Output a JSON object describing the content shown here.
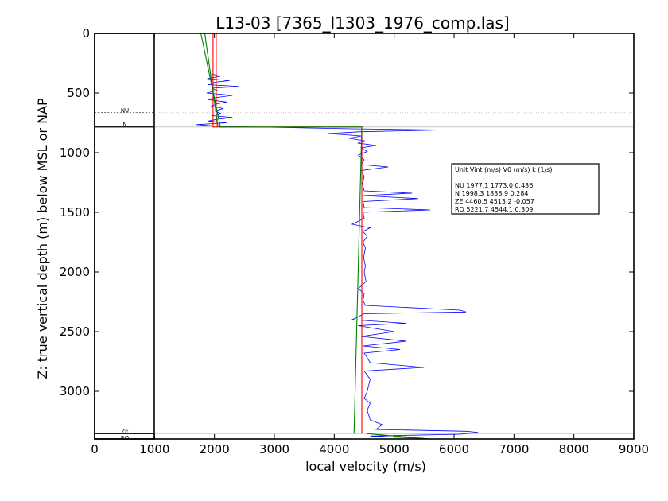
{
  "chart_data": {
    "type": "line",
    "title": "L13-03 [7365_l1303_1976_comp.las]",
    "xlabel": "local velocity (m/s)",
    "ylabel": "Z: true vertical depth (m) below MSL or NAP",
    "xlim": [
      0,
      9000
    ],
    "ylim": [
      3400,
      0
    ],
    "x_ticks": [
      "0",
      "1000",
      "2000",
      "3000",
      "4000",
      "5000",
      "6000",
      "7000",
      "8000",
      "9000"
    ],
    "y_ticks": [
      "0",
      "500",
      "1000",
      "1500",
      "2000",
      "2500",
      "3000"
    ],
    "grid": false,
    "zones": [
      {
        "name": "NU",
        "top": 0,
        "base": 785,
        "color": "#f7cb00"
      },
      {
        "name": "N",
        "top": 785,
        "base": 785,
        "color": "#f7cb00"
      },
      {
        "name": "ZE",
        "top": 785,
        "base": 3355,
        "color": "#f2b59f"
      },
      {
        "name": "RO",
        "top": 3355,
        "base": 3400,
        "color": "#b17b73"
      }
    ],
    "zone_labels": [
      {
        "label": "NU",
        "depth": 640
      },
      {
        "label": "N",
        "depth": 755
      },
      {
        "label": "ZE",
        "depth": 3330
      },
      {
        "label": "RO",
        "depth": 3385
      }
    ],
    "boundaries": [
      {
        "depth": 665,
        "style": "dotted"
      },
      {
        "depth": 785,
        "style": "solid"
      },
      {
        "depth": 3355,
        "style": "solid"
      }
    ],
    "series": [
      {
        "color": "#0000ff",
        "points": [
          [
            1950,
            340
          ],
          [
            2100,
            360
          ],
          [
            1880,
            380
          ],
          [
            2250,
            395
          ],
          [
            2000,
            410
          ],
          [
            1900,
            430
          ],
          [
            2400,
            445
          ],
          [
            1950,
            460
          ],
          [
            2050,
            480
          ],
          [
            1870,
            500
          ],
          [
            2300,
            520
          ],
          [
            2000,
            540
          ],
          [
            1900,
            555
          ],
          [
            2200,
            575
          ],
          [
            2050,
            590
          ],
          [
            1950,
            610
          ],
          [
            2150,
            630
          ],
          [
            2000,
            650
          ],
          [
            2100,
            670
          ],
          [
            1950,
            690
          ],
          [
            2300,
            705
          ],
          [
            2050,
            720
          ],
          [
            1900,
            735
          ],
          [
            2200,
            750
          ],
          [
            1700,
            765
          ],
          [
            2100,
            780
          ],
          [
            4300,
            800
          ],
          [
            5800,
            810
          ],
          [
            4400,
            825
          ],
          [
            3900,
            840
          ],
          [
            4450,
            860
          ],
          [
            4250,
            880
          ],
          [
            4500,
            900
          ],
          [
            4400,
            920
          ],
          [
            4700,
            940
          ],
          [
            4450,
            960
          ],
          [
            4550,
            990
          ],
          [
            4400,
            1020
          ],
          [
            4500,
            1060
          ],
          [
            4450,
            1100
          ],
          [
            4900,
            1120
          ],
          [
            4450,
            1150
          ],
          [
            4500,
            1200
          ],
          [
            4470,
            1260
          ],
          [
            4500,
            1320
          ],
          [
            5300,
            1340
          ],
          [
            4480,
            1360
          ],
          [
            5400,
            1385
          ],
          [
            4480,
            1410
          ],
          [
            4500,
            1460
          ],
          [
            5600,
            1480
          ],
          [
            4480,
            1500
          ],
          [
            4500,
            1550
          ],
          [
            4300,
            1600
          ],
          [
            4600,
            1630
          ],
          [
            4480,
            1660
          ],
          [
            4550,
            1700
          ],
          [
            4480,
            1750
          ],
          [
            4520,
            1800
          ],
          [
            4490,
            1880
          ],
          [
            4520,
            1950
          ],
          [
            4500,
            2000
          ],
          [
            4530,
            2080
          ],
          [
            4400,
            2140
          ],
          [
            4500,
            2180
          ],
          [
            4480,
            2240
          ],
          [
            4520,
            2280
          ],
          [
            6100,
            2320
          ],
          [
            6200,
            2335
          ],
          [
            4500,
            2350
          ],
          [
            4300,
            2400
          ],
          [
            5200,
            2430
          ],
          [
            4400,
            2450
          ],
          [
            5000,
            2500
          ],
          [
            4450,
            2540
          ],
          [
            5200,
            2580
          ],
          [
            4480,
            2620
          ],
          [
            5100,
            2650
          ],
          [
            4500,
            2680
          ],
          [
            4600,
            2760
          ],
          [
            5500,
            2800
          ],
          [
            4500,
            2830
          ],
          [
            4600,
            2900
          ],
          [
            4550,
            3000
          ],
          [
            4500,
            3060
          ],
          [
            4600,
            3100
          ],
          [
            4550,
            3160
          ],
          [
            4600,
            3240
          ],
          [
            4800,
            3280
          ],
          [
            4700,
            3320
          ],
          [
            6200,
            3335
          ],
          [
            6400,
            3345
          ],
          [
            6100,
            3360
          ],
          [
            4600,
            3375
          ],
          [
            5500,
            3395
          ]
        ]
      },
      {
        "color": "#ff0000",
        "points": [
          [
            1977.1,
            0
          ],
          [
            1977.1,
            785
          ],
          [
            4460.5,
            785
          ],
          [
            4460.5,
            3355
          ]
        ]
      },
      {
        "color": "#ff0000",
        "points": [
          [
            2030,
            0
          ],
          [
            2030,
            785
          ]
        ]
      },
      {
        "color": "#008000",
        "points": [
          [
            1773.0,
            0
          ],
          [
            2100,
            785
          ],
          [
            4460,
            785
          ],
          [
            4330,
            3355
          ]
        ]
      },
      {
        "color": "#008000",
        "points": [
          [
            1839,
            0
          ],
          [
            2060,
            785
          ]
        ]
      },
      {
        "color": "#008000",
        "points": [
          [
            4544,
            3355
          ],
          [
            5600,
            3400
          ]
        ]
      }
    ],
    "legend": {
      "placement": "right",
      "header": "Unit   Vint (m/s)     V0 (m/s)      k (1/s)",
      "rows": [
        "NU      1977.1  1773.0  0.436",
        "N       1998.3  1838.9  0.284",
        "ZE      4460.5  4513.2  -0.057",
        "RO      5221.7  4544.1  0.309"
      ]
    }
  }
}
